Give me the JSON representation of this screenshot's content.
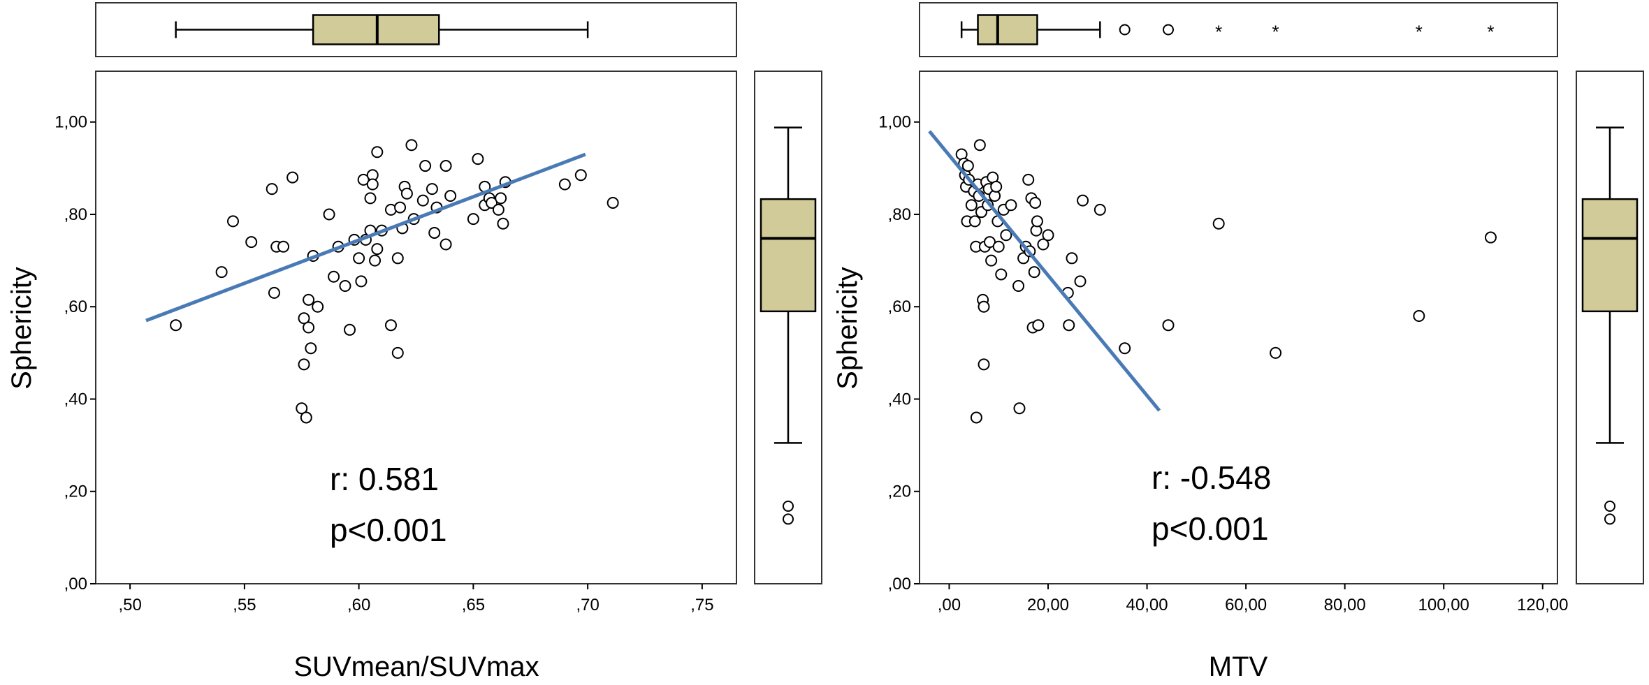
{
  "chart_data": [
    {
      "type": "scatter",
      "xlabel": "SUVmean/SUVmax",
      "ylabel": "Sphericity",
      "xlim": [
        0.485,
        0.765
      ],
      "ylim": [
        0.0,
        1.11
      ],
      "xticks": [
        0.5,
        0.55,
        0.6,
        0.65,
        0.7,
        0.75
      ],
      "xtick_labels": [
        ",50",
        ",55",
        ",60",
        ",65",
        ",70",
        ",75"
      ],
      "yticks": [
        0.0,
        0.2,
        0.4,
        0.6,
        0.8,
        1.0
      ],
      "ytick_labels": [
        ",00",
        ",20",
        ",40",
        ",60",
        ",80",
        "1,00"
      ],
      "annotations": [
        "r: 0.581",
        "p<0.001"
      ],
      "fit_line": {
        "x": [
          0.507,
          0.699
        ],
        "y": [
          0.57,
          0.93
        ],
        "color": "#4a7ab5"
      },
      "x_box": {
        "whisker_low": 0.52,
        "q1": 0.58,
        "median": 0.608,
        "q3": 0.635,
        "whisker_high": 0.7,
        "outliers": [],
        "extremes": []
      },
      "y_box": {
        "whisker_low": 0.305,
        "q1": 0.59,
        "median": 0.748,
        "q3": 0.833,
        "whisker_high": 0.988,
        "outliers": [
          0.168,
          0.14
        ],
        "extremes": []
      },
      "points": [
        {
          "x": 0.52,
          "y": 0.56
        },
        {
          "x": 0.54,
          "y": 0.675
        },
        {
          "x": 0.545,
          "y": 0.785
        },
        {
          "x": 0.553,
          "y": 0.74
        },
        {
          "x": 0.562,
          "y": 0.855
        },
        {
          "x": 0.563,
          "y": 0.63
        },
        {
          "x": 0.564,
          "y": 0.73
        },
        {
          "x": 0.567,
          "y": 0.73
        },
        {
          "x": 0.571,
          "y": 0.88
        },
        {
          "x": 0.575,
          "y": 0.38
        },
        {
          "x": 0.576,
          "y": 0.475
        },
        {
          "x": 0.576,
          "y": 0.575
        },
        {
          "x": 0.577,
          "y": 0.36
        },
        {
          "x": 0.578,
          "y": 0.615
        },
        {
          "x": 0.578,
          "y": 0.555
        },
        {
          "x": 0.579,
          "y": 0.51
        },
        {
          "x": 0.58,
          "y": 0.71
        },
        {
          "x": 0.582,
          "y": 0.6
        },
        {
          "x": 0.587,
          "y": 0.8
        },
        {
          "x": 0.589,
          "y": 0.665
        },
        {
          "x": 0.591,
          "y": 0.73
        },
        {
          "x": 0.594,
          "y": 0.645
        },
        {
          "x": 0.596,
          "y": 0.55
        },
        {
          "x": 0.598,
          "y": 0.745
        },
        {
          "x": 0.6,
          "y": 0.705
        },
        {
          "x": 0.601,
          "y": 0.655
        },
        {
          "x": 0.602,
          "y": 0.875
        },
        {
          "x": 0.603,
          "y": 0.745
        },
        {
          "x": 0.605,
          "y": 0.765
        },
        {
          "x": 0.605,
          "y": 0.835
        },
        {
          "x": 0.606,
          "y": 0.885
        },
        {
          "x": 0.606,
          "y": 0.865
        },
        {
          "x": 0.607,
          "y": 0.7
        },
        {
          "x": 0.608,
          "y": 0.725
        },
        {
          "x": 0.608,
          "y": 0.935
        },
        {
          "x": 0.61,
          "y": 0.765
        },
        {
          "x": 0.614,
          "y": 0.81
        },
        {
          "x": 0.614,
          "y": 0.56
        },
        {
          "x": 0.617,
          "y": 0.5
        },
        {
          "x": 0.617,
          "y": 0.705
        },
        {
          "x": 0.618,
          "y": 0.815
        },
        {
          "x": 0.619,
          "y": 0.77
        },
        {
          "x": 0.62,
          "y": 0.86
        },
        {
          "x": 0.621,
          "y": 0.845
        },
        {
          "x": 0.623,
          "y": 0.95
        },
        {
          "x": 0.624,
          "y": 0.79
        },
        {
          "x": 0.628,
          "y": 0.83
        },
        {
          "x": 0.629,
          "y": 0.905
        },
        {
          "x": 0.632,
          "y": 0.855
        },
        {
          "x": 0.633,
          "y": 0.76
        },
        {
          "x": 0.634,
          "y": 0.815
        },
        {
          "x": 0.638,
          "y": 0.735
        },
        {
          "x": 0.638,
          "y": 0.905
        },
        {
          "x": 0.64,
          "y": 0.84
        },
        {
          "x": 0.65,
          "y": 0.79
        },
        {
          "x": 0.652,
          "y": 0.92
        },
        {
          "x": 0.655,
          "y": 0.82
        },
        {
          "x": 0.655,
          "y": 0.86
        },
        {
          "x": 0.657,
          "y": 0.835
        },
        {
          "x": 0.658,
          "y": 0.825
        },
        {
          "x": 0.661,
          "y": 0.81
        },
        {
          "x": 0.662,
          "y": 0.835
        },
        {
          "x": 0.663,
          "y": 0.78
        },
        {
          "x": 0.664,
          "y": 0.87
        },
        {
          "x": 0.69,
          "y": 0.865
        },
        {
          "x": 0.697,
          "y": 0.885
        },
        {
          "x": 0.711,
          "y": 0.825
        }
      ]
    },
    {
      "type": "scatter",
      "xlabel": "MTV",
      "ylabel": "Sphericity",
      "xlim": [
        -6.0,
        123.0
      ],
      "ylim": [
        0.0,
        1.11
      ],
      "xticks": [
        0,
        20,
        40,
        60,
        80,
        100,
        120
      ],
      "xtick_labels": [
        ",00",
        "20,00",
        "40,00",
        "60,00",
        "80,00",
        "100,00",
        "120,00"
      ],
      "yticks": [
        0.0,
        0.2,
        0.4,
        0.6,
        0.8,
        1.0
      ],
      "ytick_labels": [
        ",00",
        ",20",
        ",40",
        ",60",
        ",80",
        "1,00"
      ],
      "annotations": [
        "r: -0.548",
        "p<0.001"
      ],
      "fit_line": {
        "x": [
          -4.0,
          42.5
        ],
        "y": [
          0.98,
          0.375
        ],
        "color": "#4a7ab5"
      },
      "x_box": {
        "whisker_low": 2.5,
        "q1": 5.8,
        "median": 9.8,
        "q3": 17.8,
        "whisker_high": 30.5,
        "outliers": [
          35.5,
          44.3
        ],
        "extremes": [
          54.5,
          66.0,
          95.0,
          109.5
        ]
      },
      "y_box": {
        "whisker_low": 0.305,
        "q1": 0.59,
        "median": 0.748,
        "q3": 0.833,
        "whisker_high": 0.988,
        "outliers": [
          0.168,
          0.14
        ],
        "extremes": []
      },
      "points": [
        {
          "x": 2.5,
          "y": 0.93
        },
        {
          "x": 3.0,
          "y": 0.91
        },
        {
          "x": 3.2,
          "y": 0.885
        },
        {
          "x": 3.4,
          "y": 0.86
        },
        {
          "x": 3.6,
          "y": 0.785
        },
        {
          "x": 3.8,
          "y": 0.905
        },
        {
          "x": 4.0,
          "y": 0.875
        },
        {
          "x": 4.5,
          "y": 0.82
        },
        {
          "x": 5.0,
          "y": 0.85
        },
        {
          "x": 5.2,
          "y": 0.785
        },
        {
          "x": 5.4,
          "y": 0.73
        },
        {
          "x": 5.5,
          "y": 0.36
        },
        {
          "x": 5.8,
          "y": 0.865
        },
        {
          "x": 6.0,
          "y": 0.84
        },
        {
          "x": 6.2,
          "y": 0.95
        },
        {
          "x": 6.5,
          "y": 0.805
        },
        {
          "x": 6.8,
          "y": 0.615
        },
        {
          "x": 7.0,
          "y": 0.6
        },
        {
          "x": 7.0,
          "y": 0.475
        },
        {
          "x": 7.2,
          "y": 0.73
        },
        {
          "x": 7.5,
          "y": 0.87
        },
        {
          "x": 7.8,
          "y": 0.82
        },
        {
          "x": 8.0,
          "y": 0.855
        },
        {
          "x": 8.2,
          "y": 0.74
        },
        {
          "x": 8.5,
          "y": 0.7
        },
        {
          "x": 8.8,
          "y": 0.88
        },
        {
          "x": 9.2,
          "y": 0.84
        },
        {
          "x": 9.5,
          "y": 0.86
        },
        {
          "x": 9.8,
          "y": 0.785
        },
        {
          "x": 10.0,
          "y": 0.73
        },
        {
          "x": 10.5,
          "y": 0.67
        },
        {
          "x": 11.0,
          "y": 0.81
        },
        {
          "x": 11.5,
          "y": 0.755
        },
        {
          "x": 12.5,
          "y": 0.82
        },
        {
          "x": 14.0,
          "y": 0.645
        },
        {
          "x": 14.2,
          "y": 0.38
        },
        {
          "x": 15.0,
          "y": 0.705
        },
        {
          "x": 15.5,
          "y": 0.73
        },
        {
          "x": 16.0,
          "y": 0.875
        },
        {
          "x": 16.3,
          "y": 0.72
        },
        {
          "x": 16.6,
          "y": 0.835
        },
        {
          "x": 16.9,
          "y": 0.555
        },
        {
          "x": 17.2,
          "y": 0.675
        },
        {
          "x": 17.4,
          "y": 0.825
        },
        {
          "x": 17.6,
          "y": 0.765
        },
        {
          "x": 17.8,
          "y": 0.785
        },
        {
          "x": 18.0,
          "y": 0.56
        },
        {
          "x": 19.0,
          "y": 0.735
        },
        {
          "x": 20.0,
          "y": 0.755
        },
        {
          "x": 24.0,
          "y": 0.63
        },
        {
          "x": 24.2,
          "y": 0.56
        },
        {
          "x": 24.8,
          "y": 0.705
        },
        {
          "x": 26.5,
          "y": 0.655
        },
        {
          "x": 27.0,
          "y": 0.83
        },
        {
          "x": 30.5,
          "y": 0.81
        },
        {
          "x": 35.5,
          "y": 0.51
        },
        {
          "x": 44.3,
          "y": 0.56
        },
        {
          "x": 54.5,
          "y": 0.78
        },
        {
          "x": 66.0,
          "y": 0.5
        },
        {
          "x": 95.0,
          "y": 0.58
        },
        {
          "x": 109.5,
          "y": 0.75
        }
      ]
    }
  ]
}
